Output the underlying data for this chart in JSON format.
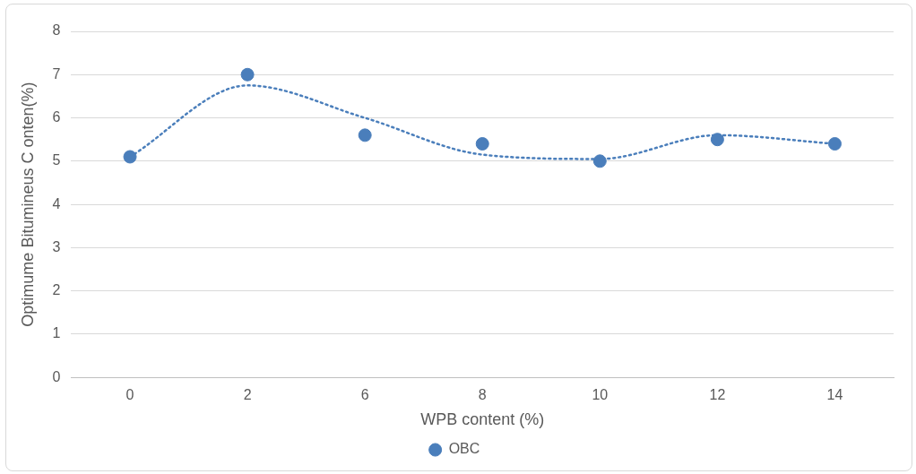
{
  "chart_data": {
    "type": "scatter",
    "xlabel": "WPB content (%)",
    "ylabel": "Optimume Bitumineus C onten(%)",
    "categories": [
      "0",
      "2",
      "6",
      "8",
      "10",
      "12",
      "14"
    ],
    "series": [
      {
        "name": "OBC",
        "type": "scatter",
        "color": "#4a7ebb",
        "marker": "circle",
        "values": [
          5.1,
          7,
          5.6,
          5.4,
          5,
          5.5,
          5.4
        ]
      },
      {
        "type": "line",
        "color": "#4a7ebb",
        "marker": "none",
        "line_style": "dotted",
        "values": [
          5.1,
          6.75,
          6,
          5.15,
          5.05,
          5.6,
          5.4
        ]
      }
    ],
    "ylim": [
      0,
      8
    ],
    "yticks": [
      0,
      1,
      2,
      3,
      4,
      5,
      6,
      7,
      8
    ],
    "grid": "y",
    "legend": "bottom"
  }
}
